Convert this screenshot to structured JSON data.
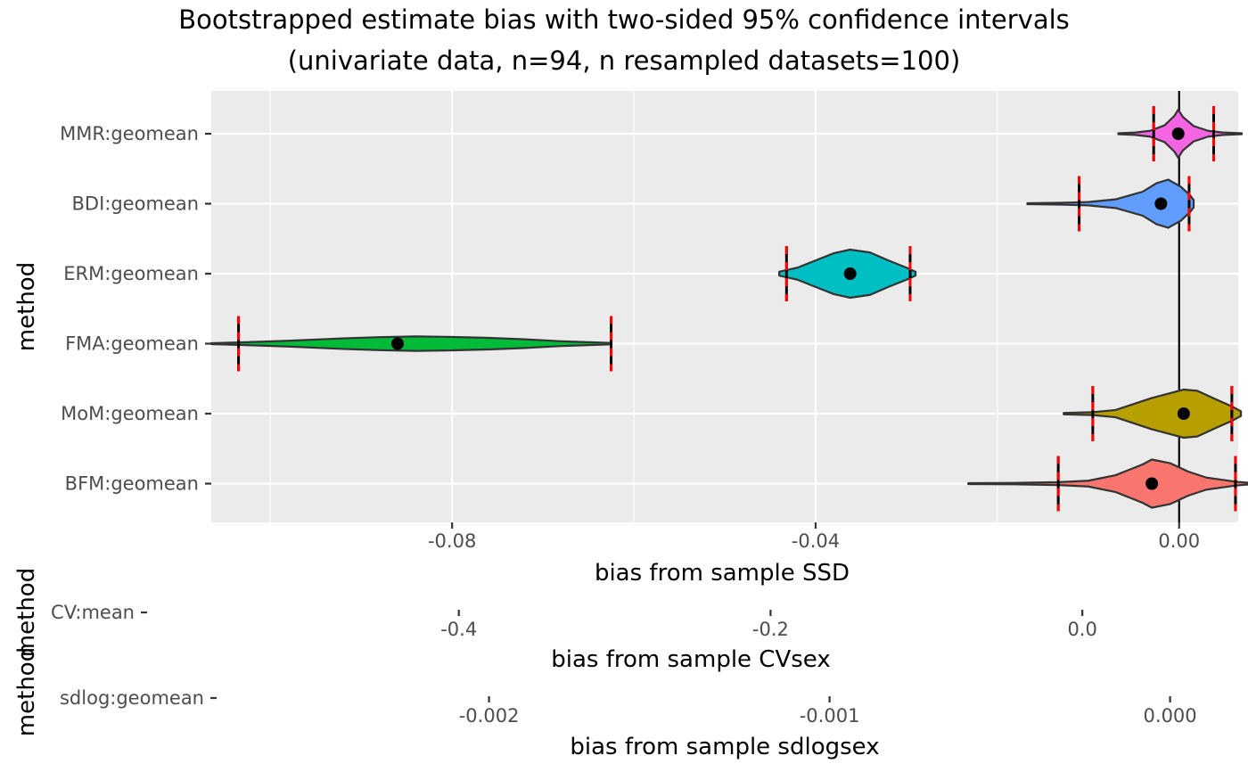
{
  "title_lines": [
    "Bootstrapped estimate bias with two-sided 95% confidence intervals",
    "(univariate data, n=94, n resampled datasets=100)"
  ],
  "chart_data": [
    {
      "type": "violin",
      "ylabel": "method",
      "xlabel": "bias from sample SSD",
      "xticks": [
        -0.08,
        -0.04,
        0.0
      ],
      "xtick_labels": [
        "-0.08",
        "-0.04",
        "0.00"
      ],
      "xlim": [
        -0.1065,
        0.0065
      ],
      "reference_line_x": 0,
      "grid": true,
      "legend": "none",
      "categories": [
        "MMR:geomean",
        "BDI:geomean",
        "ERM:geomean",
        "FMA:geomean",
        "MoM:geomean",
        "BFM:geomean"
      ],
      "series": [
        {
          "category": "MMR:geomean",
          "color": "#F564E3",
          "min": -0.0067,
          "max": 0.0069,
          "point": -0.0001,
          "ci_lower": -0.0028,
          "ci_upper": 0.0038,
          "shape": [
            [
              -0.0067,
              0.02
            ],
            [
              -0.0048,
              0.05
            ],
            [
              -0.0032,
              0.12
            ],
            [
              -0.0016,
              0.35
            ],
            [
              -0.0005,
              0.75
            ],
            [
              -0.0001,
              1.0
            ],
            [
              0.0004,
              0.7
            ],
            [
              0.0016,
              0.32
            ],
            [
              0.0032,
              0.12
            ],
            [
              0.0048,
              0.05
            ],
            [
              0.0069,
              0.02
            ]
          ]
        },
        {
          "category": "BDI:geomean",
          "color": "#619CFF",
          "min": -0.0167,
          "max": 0.0016,
          "point": -0.002,
          "ci_lower": -0.011,
          "ci_upper": 0.0011,
          "shape": [
            [
              -0.0167,
              0.02
            ],
            [
              -0.013,
              0.04
            ],
            [
              -0.01,
              0.07
            ],
            [
              -0.007,
              0.18
            ],
            [
              -0.004,
              0.5
            ],
            [
              -0.0025,
              0.85
            ],
            [
              -0.0012,
              1.0
            ],
            [
              0.0002,
              0.7
            ],
            [
              0.0012,
              0.35
            ],
            [
              0.0016,
              0.15
            ]
          ]
        },
        {
          "category": "ERM:geomean",
          "color": "#00BFC4",
          "min": -0.044,
          "max": -0.029,
          "point": -0.0362,
          "ci_lower": -0.0432,
          "ci_upper": -0.0296,
          "shape": [
            [
              -0.044,
              0.08
            ],
            [
              -0.042,
              0.25
            ],
            [
              -0.04,
              0.55
            ],
            [
              -0.038,
              0.85
            ],
            [
              -0.0362,
              1.0
            ],
            [
              -0.034,
              0.88
            ],
            [
              -0.032,
              0.55
            ],
            [
              -0.03,
              0.25
            ],
            [
              -0.029,
              0.08
            ]
          ]
        },
        {
          "category": "FMA:geomean",
          "color": "#00BA38",
          "min": -0.1065,
          "max": -0.0625,
          "point": -0.086,
          "ci_lower": -0.1035,
          "ci_upper": -0.0625,
          "shape": [
            [
              -0.1065,
              0.02
            ],
            [
              -0.1035,
              0.05
            ],
            [
              -0.098,
              0.12
            ],
            [
              -0.092,
              0.22
            ],
            [
              -0.088,
              0.27
            ],
            [
              -0.084,
              0.3
            ],
            [
              -0.08,
              0.28
            ],
            [
              -0.076,
              0.24
            ],
            [
              -0.072,
              0.18
            ],
            [
              -0.068,
              0.1
            ],
            [
              -0.0625,
              0.03
            ]
          ]
        },
        {
          "category": "MoM:geomean",
          "color": "#B79F00",
          "min": -0.0127,
          "max": 0.0068,
          "point": 0.0005,
          "ci_lower": -0.0095,
          "ci_upper": 0.0058,
          "shape": [
            [
              -0.0127,
              0.03
            ],
            [
              -0.0095,
              0.06
            ],
            [
              -0.007,
              0.15
            ],
            [
              -0.005,
              0.4
            ],
            [
              -0.003,
              0.65
            ],
            [
              -0.001,
              0.85
            ],
            [
              0.0005,
              1.0
            ],
            [
              0.002,
              0.95
            ],
            [
              0.004,
              0.6
            ],
            [
              0.0058,
              0.3
            ],
            [
              0.0068,
              0.1
            ]
          ]
        },
        {
          "category": "BFM:geomean",
          "color": "#F8766D",
          "min": -0.0232,
          "max": 0.0078,
          "point": -0.003,
          "ci_lower": -0.0133,
          "ci_upper": 0.0062,
          "shape": [
            [
              -0.0232,
              0.02
            ],
            [
              -0.018,
              0.03
            ],
            [
              -0.0133,
              0.06
            ],
            [
              -0.01,
              0.12
            ],
            [
              -0.007,
              0.35
            ],
            [
              -0.004,
              0.8
            ],
            [
              -0.003,
              1.0
            ],
            [
              -0.001,
              0.85
            ],
            [
              0.001,
              0.5
            ],
            [
              0.003,
              0.25
            ],
            [
              0.0062,
              0.08
            ],
            [
              0.0078,
              0.03
            ]
          ]
        }
      ]
    },
    {
      "type": "scatter",
      "ylabel": "method",
      "xlabel": "bias from sample CVsex",
      "categories": [
        "CV:mean"
      ],
      "xticks": [
        -0.4,
        -0.2,
        0.0
      ],
      "xtick_labels": [
        "-0.4",
        "-0.2",
        "0.0"
      ],
      "xlim": [
        -0.6,
        0.1
      ]
    },
    {
      "type": "scatter",
      "ylabel": "method",
      "xlabel": "bias from sample sdlogsex",
      "categories": [
        "sdlog:geomean"
      ],
      "xticks": [
        -0.002,
        -0.001,
        0.0
      ],
      "xtick_labels": [
        "-0.002",
        "-0.001",
        "0.000"
      ],
      "xlim": [
        -0.0028,
        0.0002
      ]
    }
  ]
}
